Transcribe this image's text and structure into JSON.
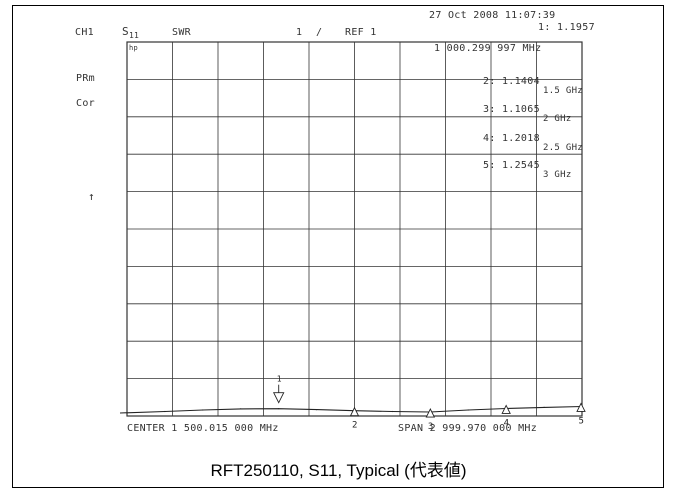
{
  "header": {
    "channel": "CH1",
    "param_main": "S",
    "param_sub": "11",
    "format": "SWR",
    "scale": "1",
    "scale_sep": "/",
    "ref": "REF 1",
    "datetime": "27 Oct 2008  11:07:39",
    "active_marker": "1:  1.1957"
  },
  "side_labels": {
    "hp": "hp",
    "prm": "PRm",
    "cor": "Cor",
    "ref_arrow": "↑"
  },
  "marker_table": {
    "m1_freq": "1 000.299 997 MHz",
    "m2": "2:  1.1404",
    "m2_f": "1.5 GHz",
    "m3": "3:  1.1065",
    "m3_f": "2 GHz",
    "m4": "4:  1.2018",
    "m4_f": "2.5 GHz",
    "m5": "5:  1.2545",
    "m5_f": "3 GHz"
  },
  "footer": {
    "center": "CENTER 1 500.015 000 MHz",
    "span": "SPAN 2 999.970 000 MHz"
  },
  "caption": "RFT250110, S11, Typical (代表値)",
  "colors": {
    "grid": "#333333",
    "trace": "#222222",
    "text": "#333333"
  },
  "chart_data": {
    "type": "line",
    "title": "",
    "xlabel": "",
    "ylabel": "SWR",
    "x_unit": "GHz",
    "xlim": [
      3e-05,
      3.0
    ],
    "ylim": [
      1,
      11
    ],
    "grid": true,
    "series": [
      {
        "x": [
          3e-05,
          0.25,
          0.5,
          0.75,
          1.0,
          1.25,
          1.5,
          1.75,
          2.0,
          2.25,
          2.5,
          2.75,
          3.0
        ],
        "values": [
          1.08,
          1.12,
          1.16,
          1.19,
          1.1957,
          1.17,
          1.1404,
          1.12,
          1.1065,
          1.16,
          1.2018,
          1.23,
          1.2545
        ]
      }
    ],
    "markers": [
      {
        "label": "1",
        "x": 1.0003,
        "y": 1.1957
      },
      {
        "label": "2",
        "x": 1.5,
        "y": 1.1404
      },
      {
        "label": "3",
        "x": 2.0,
        "y": 1.1065
      },
      {
        "label": "4",
        "x": 2.5,
        "y": 1.2018
      },
      {
        "label": "5",
        "x": 3.0,
        "y": 1.2545
      }
    ]
  }
}
